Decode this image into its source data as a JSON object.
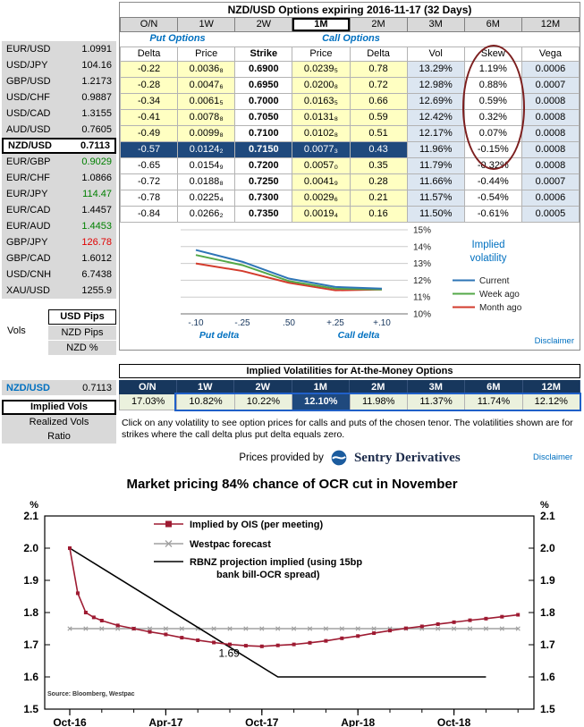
{
  "colors": {
    "up": "#008000",
    "down": "#e00000",
    "accent_blue": "#0070c0",
    "navy_header": "#17375d",
    "selected_navy": "#1f497d",
    "yellow_cell": "#ffffc2",
    "light_blue_cell": "#dce6f1",
    "pale_green_cell": "#ebf1dd",
    "skew_circle": "#7c1f1f",
    "atm_outline": "#2060c8"
  },
  "sidebar": {
    "pairs": [
      {
        "pair": "EUR/USD",
        "rate": "1.0991",
        "dir": "flat"
      },
      {
        "pair": "USD/JPY",
        "rate": "104.16",
        "dir": "flat"
      },
      {
        "pair": "GBP/USD",
        "rate": "1.2173",
        "dir": "flat"
      },
      {
        "pair": "USD/CHF",
        "rate": "0.9887",
        "dir": "flat"
      },
      {
        "pair": "USD/CAD",
        "rate": "1.3155",
        "dir": "flat"
      },
      {
        "pair": "AUD/USD",
        "rate": "0.7605",
        "dir": "flat"
      },
      {
        "pair": "NZD/USD",
        "rate": "0.7113",
        "dir": "flat",
        "selected": true
      },
      {
        "pair": "EUR/GBP",
        "rate": "0.9029",
        "dir": "up"
      },
      {
        "pair": "EUR/CHF",
        "rate": "1.0866",
        "dir": "flat"
      },
      {
        "pair": "EUR/JPY",
        "rate": "114.47",
        "dir": "up"
      },
      {
        "pair": "EUR/CAD",
        "rate": "1.4457",
        "dir": "flat"
      },
      {
        "pair": "EUR/AUD",
        "rate": "1.4453",
        "dir": "up"
      },
      {
        "pair": "GBP/JPY",
        "rate": "126.78",
        "dir": "down"
      },
      {
        "pair": "GBP/CAD",
        "rate": "1.6012",
        "dir": "flat"
      },
      {
        "pair": "USD/CNH",
        "rate": "6.7438",
        "dir": "flat"
      },
      {
        "pair": "XAU/USD",
        "rate": "1255.9",
        "dir": "flat"
      }
    ],
    "vols_label": "Vols",
    "usd_pips_label": "USD Pips",
    "nzd_pips_label": "NZD Pips",
    "nzd_pct_label": "NZD %"
  },
  "top": {
    "title": "NZD/USD Options expiring 2016-11-17 (32 Days)",
    "tenors": [
      "O/N",
      "1W",
      "2W",
      "1M",
      "2M",
      "3M",
      "6M",
      "12M"
    ],
    "selected_tenor": "1M",
    "put_options_label": "Put Options",
    "call_options_label": "Call Options",
    "columns": [
      "Delta",
      "Price",
      "Strike",
      "Price",
      "Delta",
      "Vol",
      "Skew",
      "Vega"
    ],
    "rows": [
      {
        "put_delta": "-0.22",
        "put_price": "0.0036₈",
        "strike": "0.6900",
        "call_price": "0.0239₅",
        "call_delta": "0.78",
        "vol": "13.29%",
        "skew": "1.19%",
        "vega": "0.0006"
      },
      {
        "put_delta": "-0.28",
        "put_price": "0.0047₆",
        "strike": "0.6950",
        "call_price": "0.0200₈",
        "call_delta": "0.72",
        "vol": "12.98%",
        "skew": "0.88%",
        "vega": "0.0007"
      },
      {
        "put_delta": "-0.34",
        "put_price": "0.0061₅",
        "strike": "0.7000",
        "call_price": "0.0163₅",
        "call_delta": "0.66",
        "vol": "12.69%",
        "skew": "0.59%",
        "vega": "0.0008"
      },
      {
        "put_delta": "-0.41",
        "put_price": "0.0078₈",
        "strike": "0.7050",
        "call_price": "0.0131₈",
        "call_delta": "0.59",
        "vol": "12.42%",
        "skew": "0.32%",
        "vega": "0.0008"
      },
      {
        "put_delta": "-0.49",
        "put_price": "0.0099₈",
        "strike": "0.7100",
        "call_price": "0.0102₈",
        "call_delta": "0.51",
        "vol": "12.17%",
        "skew": "0.07%",
        "vega": "0.0008"
      },
      {
        "put_delta": "-0.57",
        "put_price": "0.0124₂",
        "strike": "0.7150",
        "call_price": "0.0077₃",
        "call_delta": "0.43",
        "vol": "11.96%",
        "skew": "-0.15%",
        "vega": "0.0008"
      },
      {
        "put_delta": "-0.65",
        "put_price": "0.0154₉",
        "strike": "0.7200",
        "call_price": "0.0057₀",
        "call_delta": "0.35",
        "vol": "11.79%",
        "skew": "-0.32%",
        "vega": "0.0008"
      },
      {
        "put_delta": "-0.72",
        "put_price": "0.0188₈",
        "strike": "0.7250",
        "call_price": "0.0041₉",
        "call_delta": "0.28",
        "vol": "11.66%",
        "skew": "-0.44%",
        "vega": "0.0007"
      },
      {
        "put_delta": "-0.78",
        "put_price": "0.0225₄",
        "strike": "0.7300",
        "call_price": "0.0029₆",
        "call_delta": "0.21",
        "vol": "11.57%",
        "skew": "-0.54%",
        "vega": "0.0006"
      },
      {
        "put_delta": "-0.84",
        "put_price": "0.0266₂",
        "strike": "0.7350",
        "call_price": "0.0019₄",
        "call_delta": "0.16",
        "vol": "11.50%",
        "skew": "-0.61%",
        "vega": "0.0005"
      }
    ],
    "selected_row_index": 5,
    "disclaimer": "Disclaimer"
  },
  "atm": {
    "title": "Implied Volatilities for At-the-Money Options",
    "tenors": [
      "O/N",
      "1W",
      "2W",
      "1M",
      "2M",
      "3M",
      "6M",
      "12M"
    ],
    "values": [
      "17.03%",
      "10.82%",
      "10.22%",
      "12.10%",
      "11.98%",
      "11.37%",
      "11.74%",
      "12.12%"
    ],
    "selected_index": 3,
    "pair": "NZD/USD",
    "rate": "0.7113",
    "tabs": [
      "Implied Vols",
      "Realized Vols",
      "Ratio"
    ],
    "selected_tab": "Implied Vols",
    "note": "Click on any volatility to see option prices for calls and puts of the chosen tenor. The volatilities shown are for strikes where the call delta plus put delta equals zero.",
    "provided_by": "Prices provided by",
    "brand": "Sentry Derivatives",
    "disclaimer": "Disclaimer"
  },
  "chart_data": [
    {
      "type": "line",
      "title": "Implied volatility",
      "legend_title": "Implied volatility",
      "x_labels": [
        "-.10",
        "-.25",
        ".50",
        "+.25",
        "+.10"
      ],
      "x_axis_left_label": "Put delta",
      "x_axis_right_label": "Call delta",
      "ylim": [
        10,
        15
      ],
      "yticks": [
        10,
        11,
        12,
        13,
        14,
        15
      ],
      "ytick_suffix": "%",
      "grid": true,
      "legend_position": "right",
      "series": [
        {
          "name": "Current",
          "color": "#2e75b6",
          "values": [
            13.8,
            13.1,
            12.1,
            11.6,
            11.5
          ]
        },
        {
          "name": "Week ago",
          "color": "#54a848",
          "values": [
            13.5,
            12.9,
            11.95,
            11.5,
            11.45
          ]
        },
        {
          "name": "Month ago",
          "color": "#d33b2c",
          "values": [
            13.0,
            12.55,
            11.85,
            11.4,
            11.45
          ]
        }
      ]
    },
    {
      "type": "line",
      "title": "Market pricing 84% chance of OCR cut in November",
      "y_unit": "%",
      "ylim": [
        1.5,
        2.1
      ],
      "yticks": [
        1.5,
        1.6,
        1.7,
        1.8,
        1.9,
        2.0,
        2.1
      ],
      "x_unit": "months from Oct-16",
      "x_ticks": [
        {
          "t": 0,
          "label": "Oct-16"
        },
        {
          "t": 6,
          "label": "Apr-17"
        },
        {
          "t": 12,
          "label": "Oct-17"
        },
        {
          "t": 18,
          "label": "Apr-18"
        },
        {
          "t": 24,
          "label": "Oct-18"
        }
      ],
      "annotation": {
        "text": "1.69",
        "t": 9.3,
        "value": 1.662
      },
      "source": "Source: Bloomberg, Westpac",
      "legend_position": "top-left-inside",
      "series": [
        {
          "name": "Implied by OIS (per meeting)",
          "color": "#9e1b32",
          "marker": "square",
          "points": [
            [
              0,
              2.0
            ],
            [
              0.5,
              1.86
            ],
            [
              1,
              1.8
            ],
            [
              1.5,
              1.785
            ],
            [
              2,
              1.775
            ],
            [
              3,
              1.76
            ],
            [
              4,
              1.75
            ],
            [
              5,
              1.74
            ],
            [
              6,
              1.732
            ],
            [
              7,
              1.722
            ],
            [
              8,
              1.714
            ],
            [
              9,
              1.707
            ],
            [
              10,
              1.701
            ],
            [
              11,
              1.697
            ],
            [
              12,
              1.695
            ],
            [
              13,
              1.698
            ],
            [
              14,
              1.701
            ],
            [
              15,
              1.706
            ],
            [
              16,
              1.712
            ],
            [
              17,
              1.72
            ],
            [
              18,
              1.727
            ],
            [
              19,
              1.736
            ],
            [
              20,
              1.744
            ],
            [
              21,
              1.751
            ],
            [
              22,
              1.757
            ],
            [
              23,
              1.764
            ],
            [
              24,
              1.77
            ],
            [
              25,
              1.776
            ],
            [
              26,
              1.781
            ],
            [
              27,
              1.787
            ],
            [
              28,
              1.793
            ]
          ]
        },
        {
          "name": "Westpac forecast",
          "color": "#a0a0a0",
          "marker": "x",
          "points": [
            [
              0,
              1.75
            ],
            [
              1,
              1.75
            ],
            [
              2,
              1.75
            ],
            [
              3,
              1.75
            ],
            [
              4,
              1.75
            ],
            [
              5,
              1.75
            ],
            [
              6,
              1.75
            ],
            [
              7,
              1.75
            ],
            [
              8,
              1.75
            ],
            [
              9,
              1.75
            ],
            [
              10,
              1.75
            ],
            [
              11,
              1.75
            ],
            [
              12,
              1.75
            ],
            [
              13,
              1.75
            ],
            [
              14,
              1.75
            ],
            [
              15,
              1.75
            ],
            [
              16,
              1.75
            ],
            [
              17,
              1.75
            ],
            [
              18,
              1.75
            ],
            [
              19,
              1.75
            ],
            [
              20,
              1.75
            ],
            [
              21,
              1.75
            ],
            [
              22,
              1.75
            ],
            [
              23,
              1.75
            ],
            [
              24,
              1.75
            ],
            [
              25,
              1.75
            ],
            [
              26,
              1.75
            ],
            [
              27,
              1.75
            ],
            [
              28,
              1.75
            ]
          ]
        },
        {
          "name": "RBNZ projection implied (using 15bp\nbank bill-OCR spread)",
          "color": "#000000",
          "marker": "none",
          "points": [
            [
              0,
              2.0
            ],
            [
              13,
              1.6
            ],
            [
              26,
              1.6
            ]
          ]
        }
      ]
    }
  ]
}
